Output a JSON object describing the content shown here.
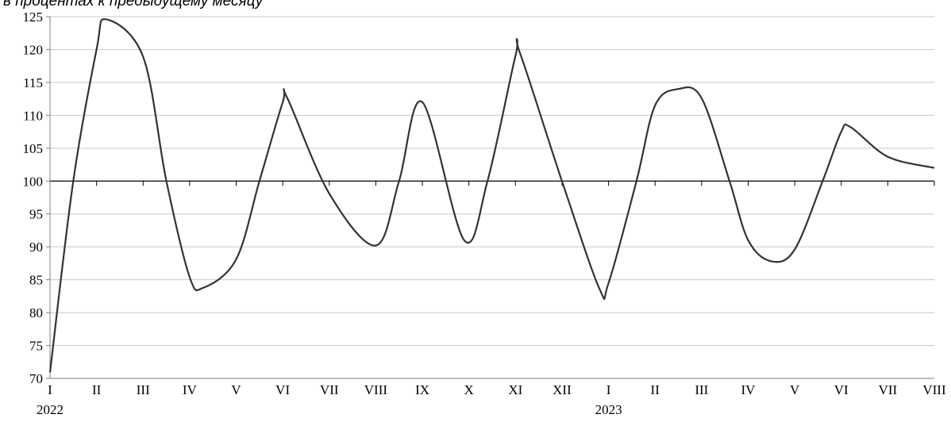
{
  "chart_data": {
    "type": "line",
    "subtitle": "в процентах к предыдущему месяцу",
    "categories": [
      "I",
      "II",
      "III",
      "IV",
      "V",
      "VI",
      "VII",
      "VIII",
      "IX",
      "X",
      "XI",
      "XII",
      "I",
      "II",
      "III",
      "IV",
      "V",
      "VI",
      "VII",
      "VIII"
    ],
    "year_labels": [
      {
        "category_index": 0,
        "label": "2022"
      },
      {
        "category_index": 12,
        "label": "2023"
      }
    ],
    "y_ticks": [
      70,
      75,
      80,
      85,
      90,
      95,
      100,
      105,
      110,
      115,
      120,
      125
    ],
    "ylim": [
      70,
      125
    ],
    "grid": true,
    "reference_line": 100,
    "series": [
      {
        "color": "#333333",
        "points": [
          [
            0,
            70.9
          ],
          [
            0.5,
            100
          ],
          [
            1,
            120
          ],
          [
            1.2,
            124.6
          ],
          [
            2,
            118.9
          ],
          [
            2.5,
            100
          ],
          [
            3,
            85.4
          ],
          [
            3.3,
            83.8
          ],
          [
            4,
            88.1
          ],
          [
            4.5,
            100
          ],
          [
            5,
            112
          ],
          [
            5.1,
            112.6
          ],
          [
            6,
            98.1
          ],
          [
            7,
            90.2
          ],
          [
            7.5,
            100
          ],
          [
            8,
            112
          ],
          [
            8.9,
            91
          ],
          [
            9.4,
            100
          ],
          [
            10,
            119
          ],
          [
            10.1,
            119.4
          ],
          [
            11,
            100
          ],
          [
            11.8,
            83.7
          ],
          [
            12,
            84.5
          ],
          [
            12.6,
            100
          ],
          [
            13,
            111.5
          ],
          [
            13.5,
            114
          ],
          [
            14,
            112.6
          ],
          [
            14.6,
            100
          ],
          [
            15,
            91
          ],
          [
            15.5,
            87.8
          ],
          [
            16,
            89.6
          ],
          [
            16.6,
            100
          ],
          [
            17,
            107.5
          ],
          [
            17.2,
            108.2
          ],
          [
            18,
            103.7
          ],
          [
            19,
            102
          ]
        ]
      }
    ]
  }
}
